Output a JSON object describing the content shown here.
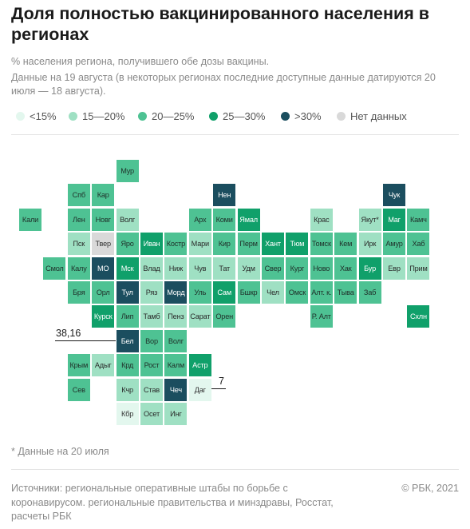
{
  "title": "Доля полностью вакцинированного населения в регионах",
  "subtitle": "% населения региона, получившего обе дозы вакцины.",
  "subtitle2": "Данные на 19 августа (в некоторых регионах последние доступные данные датируются 20 июля — 18 августа).",
  "legend": [
    {
      "label": "<15%",
      "color": "#e3f7ee"
    },
    {
      "label": "15—20%",
      "color": "#9fe0c3"
    },
    {
      "label": "20—25%",
      "color": "#4ec293"
    },
    {
      "label": "25—30%",
      "color": "#10a06a"
    },
    {
      "label": ">30%",
      "color": "#1b4e5f"
    },
    {
      "label": "Нет данных",
      "color": "#d9d9d9"
    }
  ],
  "footnote": "* Данные на 20 июля",
  "sources": "Источники: региональные оперативные штабы по борьбе с коронавирусом. региональные правительства и минздравы, Росстат, расчеты РБК",
  "copyright": "© РБК, 2021",
  "callouts": [
    {
      "label": "38,16",
      "region": "Бел"
    },
    {
      "label": "7",
      "region": "Даг"
    }
  ],
  "chart_data": {
    "type": "heatmap",
    "title": "Доля полностью вакцинированного населения в регионах",
    "categories_legend": [
      "<15%",
      "15—20%",
      "20—25%",
      "25—30%",
      ">30%",
      "Нет данных"
    ],
    "annotations": [
      {
        "region": "Бел",
        "value": 38.16
      },
      {
        "region": "Даг",
        "value": 7
      }
    ],
    "regions": [
      {
        "name": "Мур",
        "row": 0,
        "col": 4,
        "bin": 2
      },
      {
        "name": "Спб",
        "row": 1,
        "col": 2,
        "bin": 2
      },
      {
        "name": "Кар",
        "row": 1,
        "col": 3,
        "bin": 2
      },
      {
        "name": "Нен",
        "row": 1,
        "col": 8,
        "bin": 4
      },
      {
        "name": "Чук",
        "row": 1,
        "col": 15,
        "bin": 4
      },
      {
        "name": "Кали",
        "row": 2,
        "col": 0,
        "bin": 2
      },
      {
        "name": "Лен",
        "row": 2,
        "col": 2,
        "bin": 2
      },
      {
        "name": "Новг",
        "row": 2,
        "col": 3,
        "bin": 2
      },
      {
        "name": "Волг",
        "row": 2,
        "col": 4,
        "bin": 1
      },
      {
        "name": "Арх",
        "row": 2,
        "col": 7,
        "bin": 2
      },
      {
        "name": "Коми",
        "row": 2,
        "col": 8,
        "bin": 2
      },
      {
        "name": "Ямал",
        "row": 2,
        "col": 9,
        "bin": 3
      },
      {
        "name": "Крас",
        "row": 2,
        "col": 12,
        "bin": 1
      },
      {
        "name": "Якут*",
        "row": 2,
        "col": 14,
        "bin": 1
      },
      {
        "name": "Маг",
        "row": 2,
        "col": 15,
        "bin": 3
      },
      {
        "name": "Камч",
        "row": 2,
        "col": 16,
        "bin": 2
      },
      {
        "name": "Пск",
        "row": 3,
        "col": 2,
        "bin": 1
      },
      {
        "name": "Твер",
        "row": 3,
        "col": 3,
        "bin": 5
      },
      {
        "name": "Яро",
        "row": 3,
        "col": 4,
        "bin": 2
      },
      {
        "name": "Иван",
        "row": 3,
        "col": 5,
        "bin": 3
      },
      {
        "name": "Костр",
        "row": 3,
        "col": 6,
        "bin": 2
      },
      {
        "name": "Мари",
        "row": 3,
        "col": 7,
        "bin": 1
      },
      {
        "name": "Кир",
        "row": 3,
        "col": 8,
        "bin": 2
      },
      {
        "name": "Перм",
        "row": 3,
        "col": 9,
        "bin": 2
      },
      {
        "name": "Хант",
        "row": 3,
        "col": 10,
        "bin": 3
      },
      {
        "name": "Тюм",
        "row": 3,
        "col": 11,
        "bin": 3
      },
      {
        "name": "Томск",
        "row": 3,
        "col": 12,
        "bin": 2
      },
      {
        "name": "Кем",
        "row": 3,
        "col": 13,
        "bin": 2
      },
      {
        "name": "Ирк",
        "row": 3,
        "col": 14,
        "bin": 1
      },
      {
        "name": "Амур",
        "row": 3,
        "col": 15,
        "bin": 2
      },
      {
        "name": "Хаб",
        "row": 3,
        "col": 16,
        "bin": 2
      },
      {
        "name": "Смол",
        "row": 4,
        "col": 1,
        "bin": 2
      },
      {
        "name": "Калу",
        "row": 4,
        "col": 2,
        "bin": 2
      },
      {
        "name": "МО",
        "row": 4,
        "col": 3,
        "bin": 4
      },
      {
        "name": "Мск",
        "row": 4,
        "col": 4,
        "bin": 3
      },
      {
        "name": "Влад",
        "row": 4,
        "col": 5,
        "bin": 1
      },
      {
        "name": "Ниж",
        "row": 4,
        "col": 6,
        "bin": 1
      },
      {
        "name": "Чув",
        "row": 4,
        "col": 7,
        "bin": 1
      },
      {
        "name": "Тат",
        "row": 4,
        "col": 8,
        "bin": 1
      },
      {
        "name": "Удм",
        "row": 4,
        "col": 9,
        "bin": 1
      },
      {
        "name": "Свер",
        "row": 4,
        "col": 10,
        "bin": 2
      },
      {
        "name": "Кург",
        "row": 4,
        "col": 11,
        "bin": 2
      },
      {
        "name": "Ново",
        "row": 4,
        "col": 12,
        "bin": 2
      },
      {
        "name": "Хак",
        "row": 4,
        "col": 13,
        "bin": 2
      },
      {
        "name": "Бур",
        "row": 4,
        "col": 14,
        "bin": 3
      },
      {
        "name": "Евр",
        "row": 4,
        "col": 15,
        "bin": 1
      },
      {
        "name": "Прим",
        "row": 4,
        "col": 16,
        "bin": 1
      },
      {
        "name": "Бря",
        "row": 5,
        "col": 2,
        "bin": 2
      },
      {
        "name": "Орл",
        "row": 5,
        "col": 3,
        "bin": 2
      },
      {
        "name": "Тул",
        "row": 5,
        "col": 4,
        "bin": 4
      },
      {
        "name": "Ряз",
        "row": 5,
        "col": 5,
        "bin": 1
      },
      {
        "name": "Морд",
        "row": 5,
        "col": 6,
        "bin": 4
      },
      {
        "name": "Уль",
        "row": 5,
        "col": 7,
        "bin": 2
      },
      {
        "name": "Сам",
        "row": 5,
        "col": 8,
        "bin": 3
      },
      {
        "name": "Бшкр",
        "row": 5,
        "col": 9,
        "bin": 2
      },
      {
        "name": "Чел",
        "row": 5,
        "col": 10,
        "bin": 1
      },
      {
        "name": "Омск",
        "row": 5,
        "col": 11,
        "bin": 2
      },
      {
        "name": "Алт. к.",
        "row": 5,
        "col": 12,
        "bin": 2
      },
      {
        "name": "Тыва",
        "row": 5,
        "col": 13,
        "bin": 2
      },
      {
        "name": "Заб",
        "row": 5,
        "col": 14,
        "bin": 2
      },
      {
        "name": "Курск",
        "row": 6,
        "col": 3,
        "bin": 3
      },
      {
        "name": "Лип",
        "row": 6,
        "col": 4,
        "bin": 2
      },
      {
        "name": "Тамб",
        "row": 6,
        "col": 5,
        "bin": 1
      },
      {
        "name": "Пенз",
        "row": 6,
        "col": 6,
        "bin": 1
      },
      {
        "name": "Сарат",
        "row": 6,
        "col": 7,
        "bin": 1
      },
      {
        "name": "Орен",
        "row": 6,
        "col": 8,
        "bin": 2
      },
      {
        "name": "Р. Алт",
        "row": 6,
        "col": 12,
        "bin": 2
      },
      {
        "name": "Схлн",
        "row": 6,
        "col": 16,
        "bin": 3
      },
      {
        "name": "Бел",
        "row": 7,
        "col": 4,
        "bin": 4
      },
      {
        "name": "Вор",
        "row": 7,
        "col": 5,
        "bin": 2
      },
      {
        "name": "Волг",
        "row": 7,
        "col": 6,
        "bin": 2
      },
      {
        "name": "Крым",
        "row": 8,
        "col": 2,
        "bin": 2
      },
      {
        "name": "Адыг",
        "row": 8,
        "col": 3,
        "bin": 1
      },
      {
        "name": "Крд",
        "row": 8,
        "col": 4,
        "bin": 2
      },
      {
        "name": "Рост",
        "row": 8,
        "col": 5,
        "bin": 2
      },
      {
        "name": "Калм",
        "row": 8,
        "col": 6,
        "bin": 2
      },
      {
        "name": "Астр",
        "row": 8,
        "col": 7,
        "bin": 3
      },
      {
        "name": "Сев",
        "row": 9,
        "col": 2,
        "bin": 2
      },
      {
        "name": "Кчр",
        "row": 9,
        "col": 4,
        "bin": 1
      },
      {
        "name": "Став",
        "row": 9,
        "col": 5,
        "bin": 1
      },
      {
        "name": "Чеч",
        "row": 9,
        "col": 6,
        "bin": 4
      },
      {
        "name": "Даг",
        "row": 9,
        "col": 7,
        "bin": 0
      },
      {
        "name": "Кбр",
        "row": 10,
        "col": 4,
        "bin": 0
      },
      {
        "name": "Осет",
        "row": 10,
        "col": 5,
        "bin": 1
      },
      {
        "name": "Инг",
        "row": 10,
        "col": 6,
        "bin": 1
      }
    ]
  }
}
